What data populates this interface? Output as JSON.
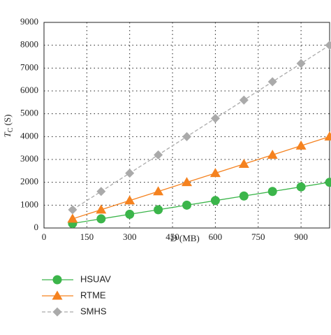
{
  "chart_data": {
    "type": "line",
    "xlabel": {
      "symbol": "D",
      "unit": "(MB)"
    },
    "ylabel": {
      "symbol": "T",
      "subscript": "C",
      "unit": "(S)"
    },
    "x": [
      100,
      200,
      300,
      400,
      500,
      600,
      700,
      800,
      900,
      1000
    ],
    "series": [
      {
        "name": "HSUAV",
        "color": "#3bb54a",
        "marker": "circle",
        "dashed": false,
        "values": [
          200,
          400,
          600,
          800,
          1000,
          1200,
          1400,
          1600,
          1800,
          2000
        ]
      },
      {
        "name": "RTME",
        "color": "#f5821f",
        "marker": "triangle",
        "dashed": false,
        "values": [
          400,
          800,
          1200,
          1600,
          2000,
          2400,
          2800,
          3200,
          3600,
          4000
        ]
      },
      {
        "name": "SMHS",
        "color": "#aaaaaa",
        "marker": "diamond",
        "dashed": true,
        "values": [
          800,
          1600,
          2400,
          3200,
          4000,
          4800,
          5600,
          6400,
          7200,
          8000
        ]
      }
    ],
    "xlim": [
      0,
      1000
    ],
    "xticks": [
      0,
      150,
      300,
      450,
      600,
      750,
      900
    ],
    "ylim": [
      0,
      9000
    ],
    "yticks": [
      0,
      1000,
      2000,
      3000,
      4000,
      5000,
      6000,
      7000,
      8000,
      9000
    ],
    "grid": true,
    "legend": "below"
  }
}
